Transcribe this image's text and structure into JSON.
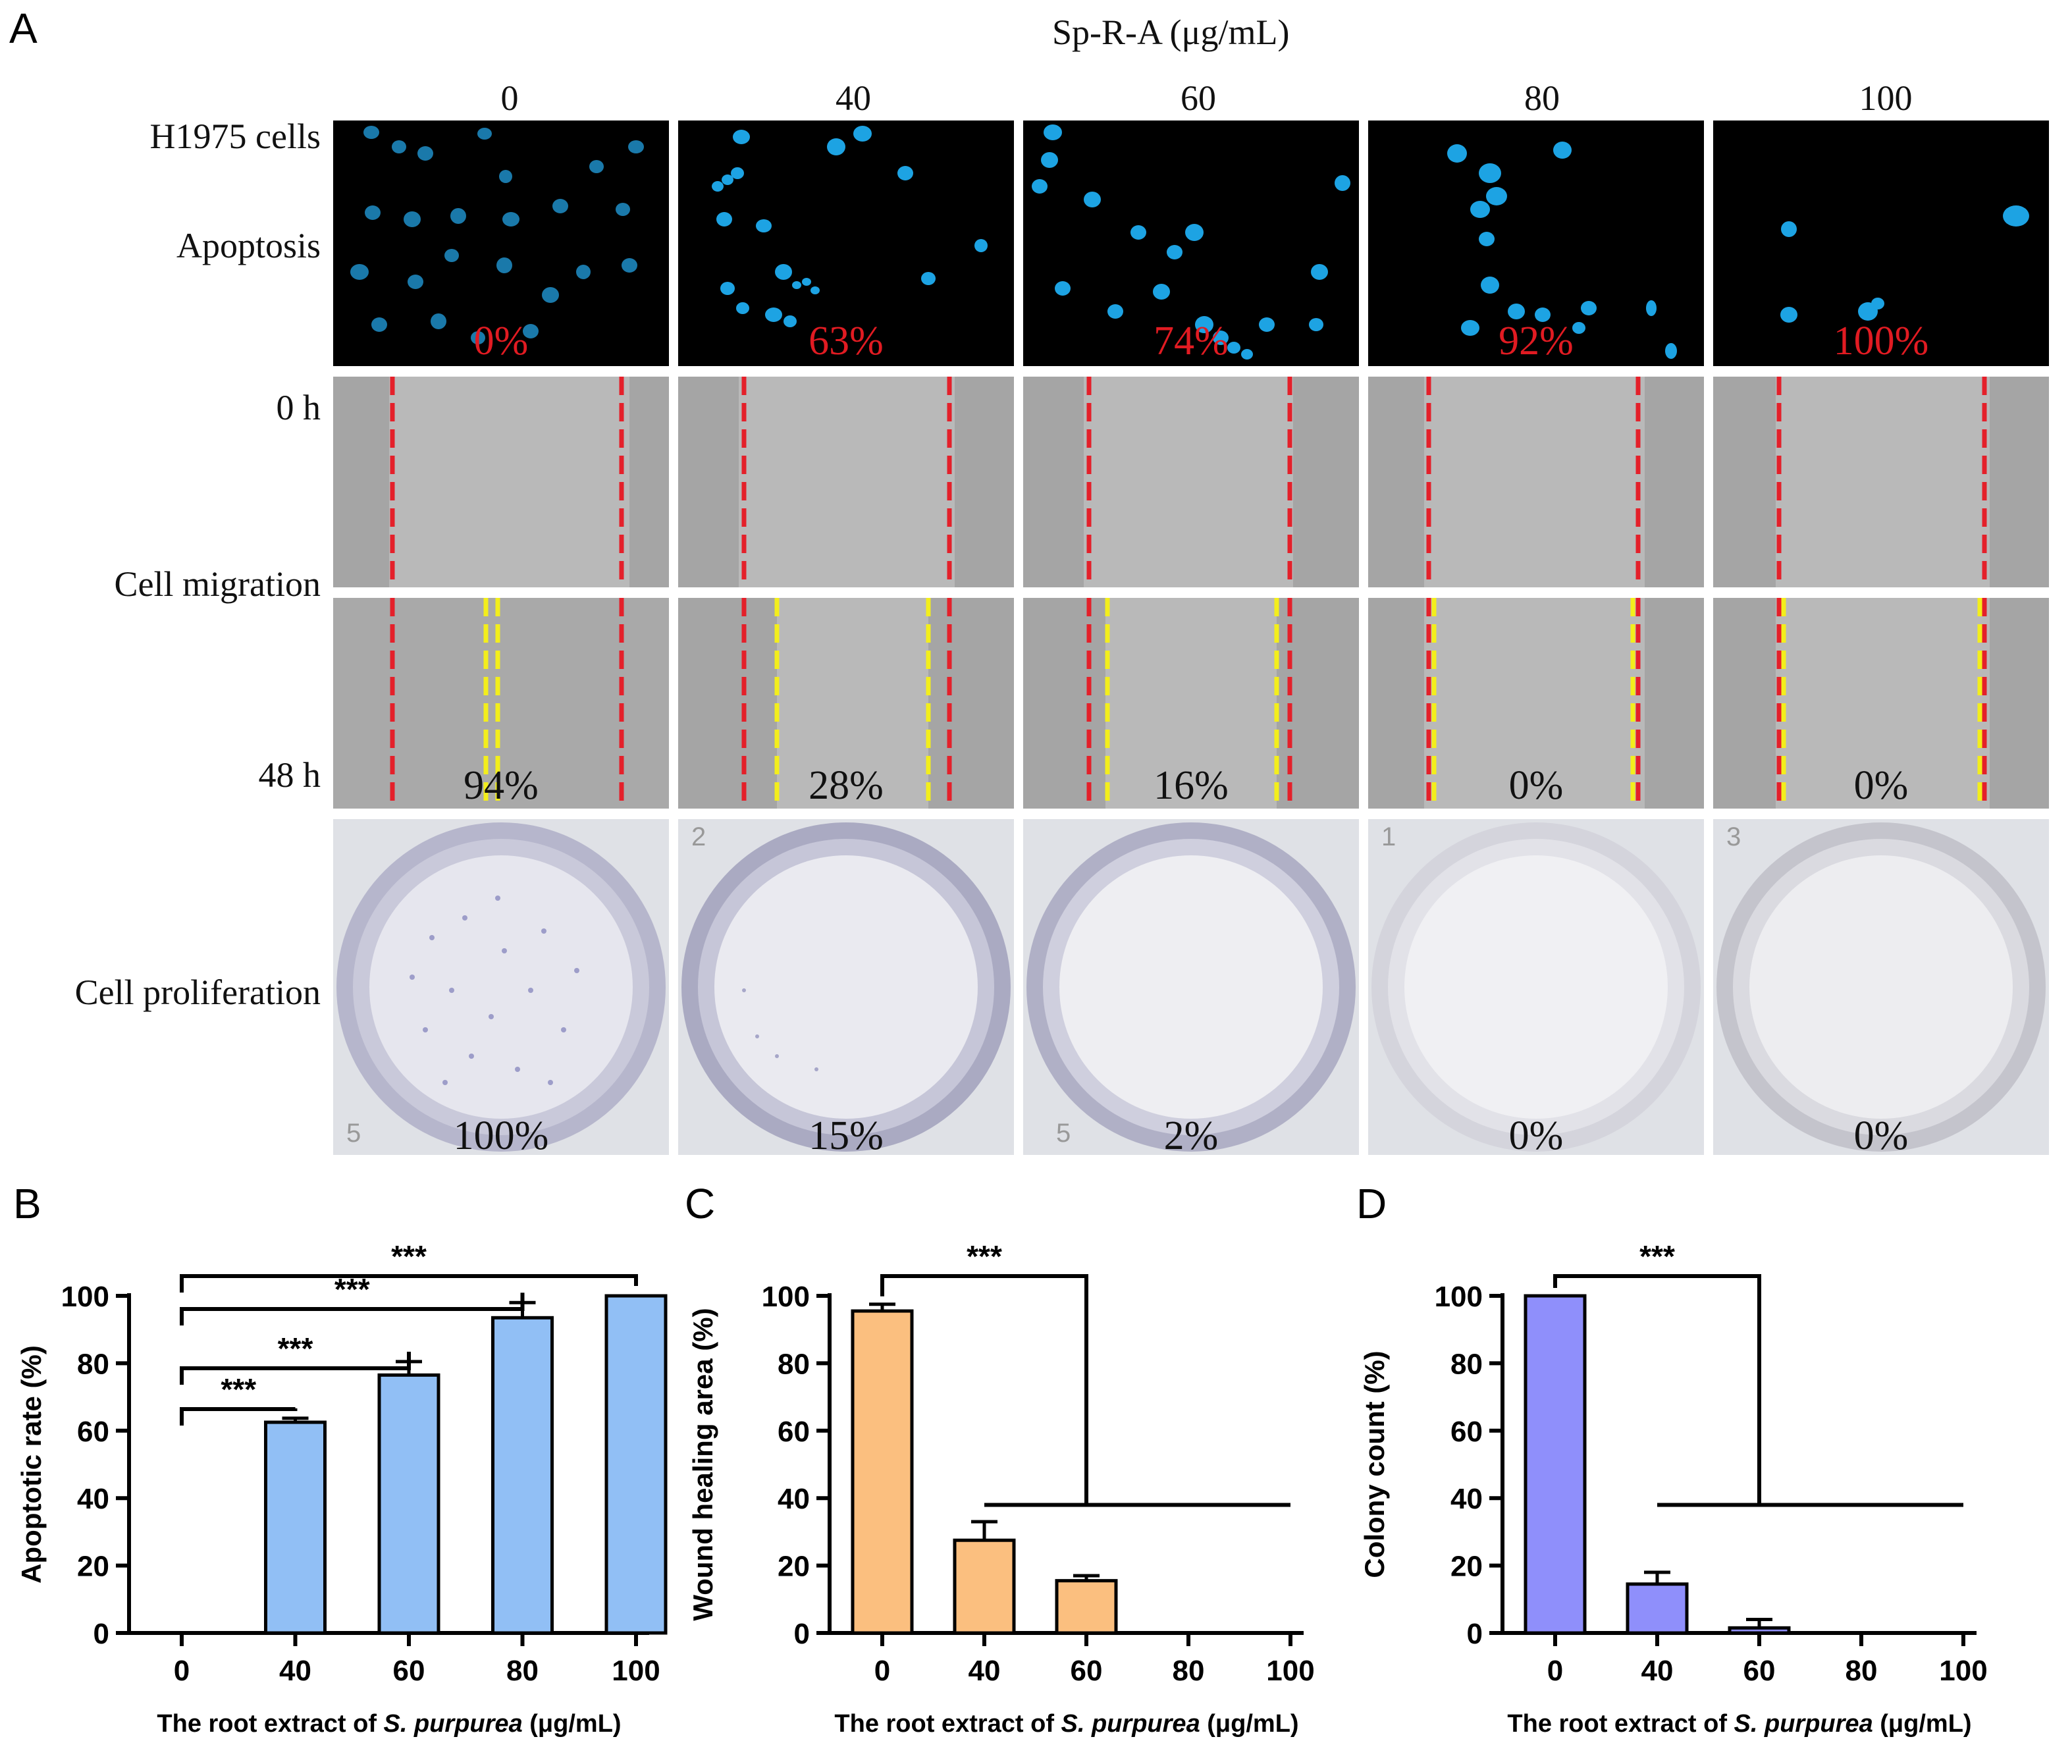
{
  "panel_a": {
    "letter": "A",
    "treatment_title": "Sp-R-A (μg/mL)",
    "concentrations": [
      "0",
      "40",
      "60",
      "80",
      "100"
    ],
    "row_labels": {
      "cells": "H1975 cells",
      "apoptosis": "Apoptosis",
      "t0": "0 h",
      "migration": "Cell migration",
      "t48": "48 h",
      "proliferation": "Cell proliferation"
    },
    "apoptosis_pct": [
      "0%",
      "63%",
      "74%",
      "92%",
      "100%"
    ],
    "migration_pct": [
      "94%",
      "28%",
      "16%",
      "0%",
      "0%"
    ],
    "proliferation_pct": [
      "100%",
      "15%",
      "2%",
      "0%",
      "0%"
    ],
    "well_numbers": [
      "5",
      "2",
      "5",
      "1",
      "3"
    ]
  },
  "colors": {
    "apoptosis_bar": "#91bff5",
    "wound_bar": "#fbbf7f",
    "colony_bar": "#8f8ffb",
    "nuclei": "#1da3e3",
    "red_line": "#e4202a",
    "yellow_line": "#f3ee1c",
    "pct_red": "#e11b22"
  },
  "chart_data": [
    {
      "letter": "B",
      "type": "bar",
      "categories": [
        "0",
        "40",
        "60",
        "80",
        "100"
      ],
      "values": [
        0,
        62.5,
        76.5,
        93.5,
        100
      ],
      "errors": [
        0,
        1.2,
        4,
        4.5,
        0
      ],
      "xlabel_pre": "The root extract of ",
      "xlabel_species": "S. purpurea",
      "xlabel_post": " (μg/mL)",
      "ylabel": "Apoptotic rate (%)",
      "yticks": [
        "0",
        "20",
        "40",
        "60",
        "80",
        "100"
      ],
      "ylim": [
        0,
        100
      ],
      "significance": "***",
      "color": "#91bff5"
    },
    {
      "letter": "C",
      "type": "bar",
      "categories": [
        "0",
        "40",
        "60",
        "80",
        "100"
      ],
      "values": [
        95.5,
        27.5,
        15.5,
        0,
        0
      ],
      "errors": [
        2,
        5.5,
        1.5,
        0,
        0
      ],
      "xlabel_pre": "The root extract of ",
      "xlabel_species": "S. purpurea",
      "xlabel_post": " (μg/mL)",
      "ylabel": "Wound healing area (%)",
      "yticks": [
        "0",
        "20",
        "40",
        "60",
        "80",
        "100"
      ],
      "ylim": [
        0,
        100
      ],
      "significance": "***",
      "color": "#fbbf7f"
    },
    {
      "letter": "D",
      "type": "bar",
      "categories": [
        "0",
        "40",
        "60",
        "80",
        "100"
      ],
      "values": [
        100,
        14.5,
        1.5,
        0,
        0
      ],
      "errors": [
        0,
        3.5,
        2.5,
        0,
        0
      ],
      "xlabel_pre": "The root extract of ",
      "xlabel_species": "S. purpurea",
      "xlabel_post": " (μg/mL)",
      "ylabel": "Colony count (%)",
      "yticks": [
        "0",
        "20",
        "40",
        "60",
        "80",
        "100"
      ],
      "ylim": [
        0,
        100
      ],
      "significance": "***",
      "color": "#8f8ffb"
    }
  ]
}
